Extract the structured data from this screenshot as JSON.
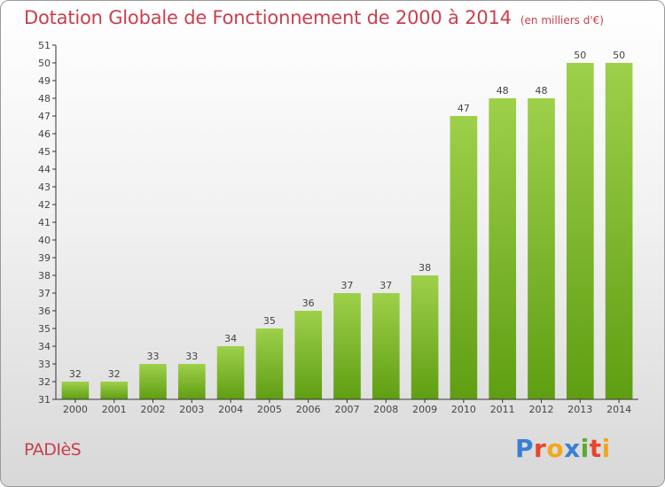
{
  "header": {
    "title": "Dotation Globale de Fonctionnement de 2000 à 2014",
    "subtitle": "(en milliers d'€)"
  },
  "footer": {
    "place_name": "PADIèS",
    "logo_text": "Proxiti",
    "logo_colors": [
      "#3a7fd5",
      "#e8452c",
      "#f0a81c",
      "#3a7fd5",
      "#5aab2a",
      "#e8452c",
      "#f0a81c"
    ]
  },
  "chart_data": {
    "type": "bar",
    "title": "Dotation Globale de Fonctionnement de 2000 à 2014",
    "subtitle": "(en milliers d'€)",
    "categories": [
      "2000",
      "2001",
      "2002",
      "2003",
      "2004",
      "2005",
      "2006",
      "2007",
      "2008",
      "2009",
      "2010",
      "2011",
      "2012",
      "2013",
      "2014"
    ],
    "values": [
      32,
      32,
      33,
      33,
      34,
      35,
      36,
      37,
      37,
      38,
      47,
      48,
      48,
      50,
      50
    ],
    "ylim": [
      31,
      51
    ],
    "yticks": [
      31,
      32,
      33,
      34,
      35,
      36,
      37,
      38,
      39,
      40,
      41,
      42,
      43,
      44,
      45,
      46,
      47,
      48,
      49,
      50,
      51
    ],
    "grid": false,
    "legend": "none",
    "bar_color_top": "#9ed04a",
    "bar_color_bottom": "#5f9e12",
    "axis_color": "#333333"
  }
}
